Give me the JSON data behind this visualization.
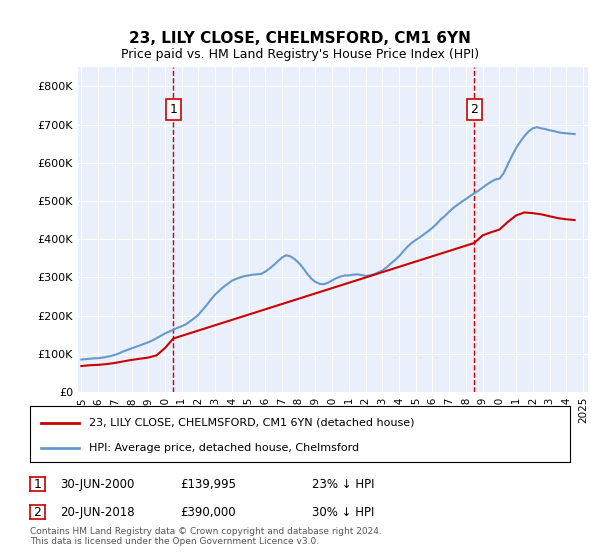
{
  "title": "23, LILY CLOSE, CHELMSFORD, CM1 6YN",
  "subtitle": "Price paid vs. HM Land Registry's House Price Index (HPI)",
  "background_color": "#eaf0fb",
  "plot_bg_color": "#eaf0fb",
  "ylim": [
    0,
    850000
  ],
  "yticks": [
    0,
    100000,
    200000,
    300000,
    400000,
    500000,
    600000,
    700000,
    800000
  ],
  "ytick_labels": [
    "£0",
    "£100K",
    "£200K",
    "£300K",
    "£400K",
    "£500K",
    "£600K",
    "£700K",
    "£800K"
  ],
  "xlabel_years": [
    "1995",
    "1996",
    "1997",
    "1998",
    "1999",
    "2000",
    "2001",
    "2002",
    "2003",
    "2004",
    "2005",
    "2006",
    "2007",
    "2008",
    "2009",
    "2010",
    "2011",
    "2012",
    "2013",
    "2014",
    "2015",
    "2016",
    "2017",
    "2018",
    "2019",
    "2020",
    "2021",
    "2022",
    "2023",
    "2024",
    "2025"
  ],
  "legend_line1": "23, LILY CLOSE, CHELMSFORD, CM1 6YN (detached house)",
  "legend_line2": "HPI: Average price, detached house, Chelmsford",
  "sale1_label": "1",
  "sale1_date": "30-JUN-2000",
  "sale1_price": "£139,995",
  "sale1_hpi": "23% ↓ HPI",
  "sale1_year": 2000.5,
  "sale1_value": 139995,
  "sale2_label": "2",
  "sale2_date": "20-JUN-2018",
  "sale2_price": "£390,000",
  "sale2_hpi": "30% ↓ HPI",
  "sale2_year": 2018.5,
  "sale2_value": 390000,
  "red_color": "#cc0000",
  "blue_color": "#6699cc",
  "footer": "Contains HM Land Registry data © Crown copyright and database right 2024.\nThis data is licensed under the Open Government Licence v3.0.",
  "hpi_data_x": [
    1995.0,
    1995.25,
    1995.5,
    1995.75,
    1996.0,
    1996.25,
    1996.5,
    1996.75,
    1997.0,
    1997.25,
    1997.5,
    1997.75,
    1998.0,
    1998.25,
    1998.5,
    1998.75,
    1999.0,
    1999.25,
    1999.5,
    1999.75,
    2000.0,
    2000.25,
    2000.5,
    2000.75,
    2001.0,
    2001.25,
    2001.5,
    2001.75,
    2002.0,
    2002.25,
    2002.5,
    2002.75,
    2003.0,
    2003.25,
    2003.5,
    2003.75,
    2004.0,
    2004.25,
    2004.5,
    2004.75,
    2005.0,
    2005.25,
    2005.5,
    2005.75,
    2006.0,
    2006.25,
    2006.5,
    2006.75,
    2007.0,
    2007.25,
    2007.5,
    2007.75,
    2008.0,
    2008.25,
    2008.5,
    2008.75,
    2009.0,
    2009.25,
    2009.5,
    2009.75,
    2010.0,
    2010.25,
    2010.5,
    2010.75,
    2011.0,
    2011.25,
    2011.5,
    2011.75,
    2012.0,
    2012.25,
    2012.5,
    2012.75,
    2013.0,
    2013.25,
    2013.5,
    2013.75,
    2014.0,
    2014.25,
    2014.5,
    2014.75,
    2015.0,
    2015.25,
    2015.5,
    2015.75,
    2016.0,
    2016.25,
    2016.5,
    2016.75,
    2017.0,
    2017.25,
    2017.5,
    2017.75,
    2018.0,
    2018.25,
    2018.5,
    2018.75,
    2019.0,
    2019.25,
    2019.5,
    2019.75,
    2020.0,
    2020.25,
    2020.5,
    2020.75,
    2021.0,
    2021.25,
    2021.5,
    2021.75,
    2022.0,
    2022.25,
    2022.5,
    2022.75,
    2023.0,
    2023.25,
    2023.5,
    2023.75,
    2024.0,
    2024.25,
    2024.5
  ],
  "hpi_data_y": [
    85000,
    86000,
    87000,
    88000,
    88500,
    90000,
    92000,
    94000,
    97000,
    101000,
    106000,
    110000,
    114000,
    118000,
    122000,
    126000,
    130000,
    135000,
    141000,
    147000,
    153000,
    158000,
    163000,
    168000,
    172000,
    177000,
    185000,
    193000,
    202000,
    215000,
    228000,
    242000,
    255000,
    265000,
    275000,
    283000,
    291000,
    296000,
    300000,
    303000,
    305000,
    307000,
    308000,
    309000,
    315000,
    323000,
    332000,
    342000,
    352000,
    358000,
    355000,
    348000,
    338000,
    325000,
    310000,
    297000,
    288000,
    283000,
    282000,
    286000,
    292000,
    298000,
    302000,
    305000,
    305000,
    307000,
    308000,
    306000,
    304000,
    305000,
    308000,
    313000,
    318000,
    326000,
    336000,
    345000,
    355000,
    368000,
    380000,
    390000,
    398000,
    405000,
    413000,
    421000,
    430000,
    440000,
    452000,
    461000,
    472000,
    482000,
    490000,
    498000,
    505000,
    513000,
    520000,
    527000,
    535000,
    543000,
    550000,
    556000,
    558000,
    572000,
    595000,
    618000,
    638000,
    655000,
    670000,
    682000,
    690000,
    693000,
    690000,
    688000,
    685000,
    683000,
    680000,
    678000,
    677000,
    676000,
    675000
  ],
  "red_data_x": [
    1995.0,
    1995.5,
    1996.0,
    1996.5,
    1997.0,
    1997.5,
    1998.0,
    1998.5,
    1999.0,
    1999.5,
    2000.0,
    2000.5,
    2018.5,
    2019.0,
    2019.5,
    2020.0,
    2020.5,
    2021.0,
    2021.5,
    2022.0,
    2022.5,
    2023.0,
    2023.5,
    2024.0,
    2024.5
  ],
  "red_data_y": [
    68000,
    70000,
    71000,
    73000,
    76000,
    80000,
    84000,
    87000,
    90000,
    96000,
    115000,
    139995,
    390000,
    410000,
    418000,
    425000,
    445000,
    462000,
    470000,
    468000,
    465000,
    460000,
    455000,
    452000,
    450000
  ]
}
